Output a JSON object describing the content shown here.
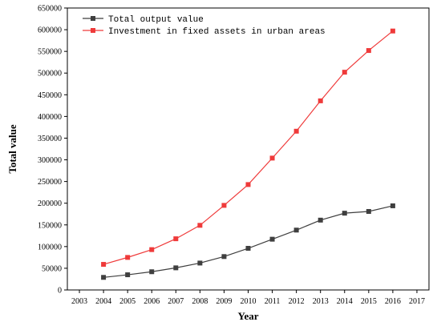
{
  "chart_data": {
    "type": "line",
    "title": "",
    "xlabel": "Year",
    "ylabel": "Total value",
    "xlim": [
      2002.5,
      2017.5
    ],
    "ylim": [
      0,
      650000
    ],
    "x_ticks": [
      "2003",
      "2004",
      "2005",
      "2006",
      "2007",
      "2008",
      "2009",
      "2010",
      "2011",
      "2012",
      "2013",
      "2014",
      "2015",
      "2016",
      "2017"
    ],
    "y_ticks": [
      "0",
      "50000",
      "100000",
      "150000",
      "200000",
      "250000",
      "300000",
      "350000",
      "400000",
      "450000",
      "500000",
      "550000",
      "600000",
      "650000"
    ],
    "grid": false,
    "legend_position": "top-left",
    "x": [
      2004,
      2005,
      2006,
      2007,
      2008,
      2009,
      2010,
      2011,
      2012,
      2013,
      2014,
      2015,
      2016
    ],
    "series": [
      {
        "name": "Total output value",
        "color": "#3f3f3f",
        "marker": "square",
        "values": [
          29000,
          35000,
          42000,
          51000,
          62000,
          77000,
          96000,
          117000,
          138000,
          161000,
          177000,
          181000,
          194000
        ]
      },
      {
        "name": "Investment in fixed assets in urban areas",
        "color": "#ef3a3a",
        "marker": "square",
        "values": [
          59000,
          75000,
          93000,
          118000,
          149000,
          195000,
          243000,
          304000,
          366000,
          436000,
          502000,
          552000,
          597000
        ]
      }
    ]
  }
}
